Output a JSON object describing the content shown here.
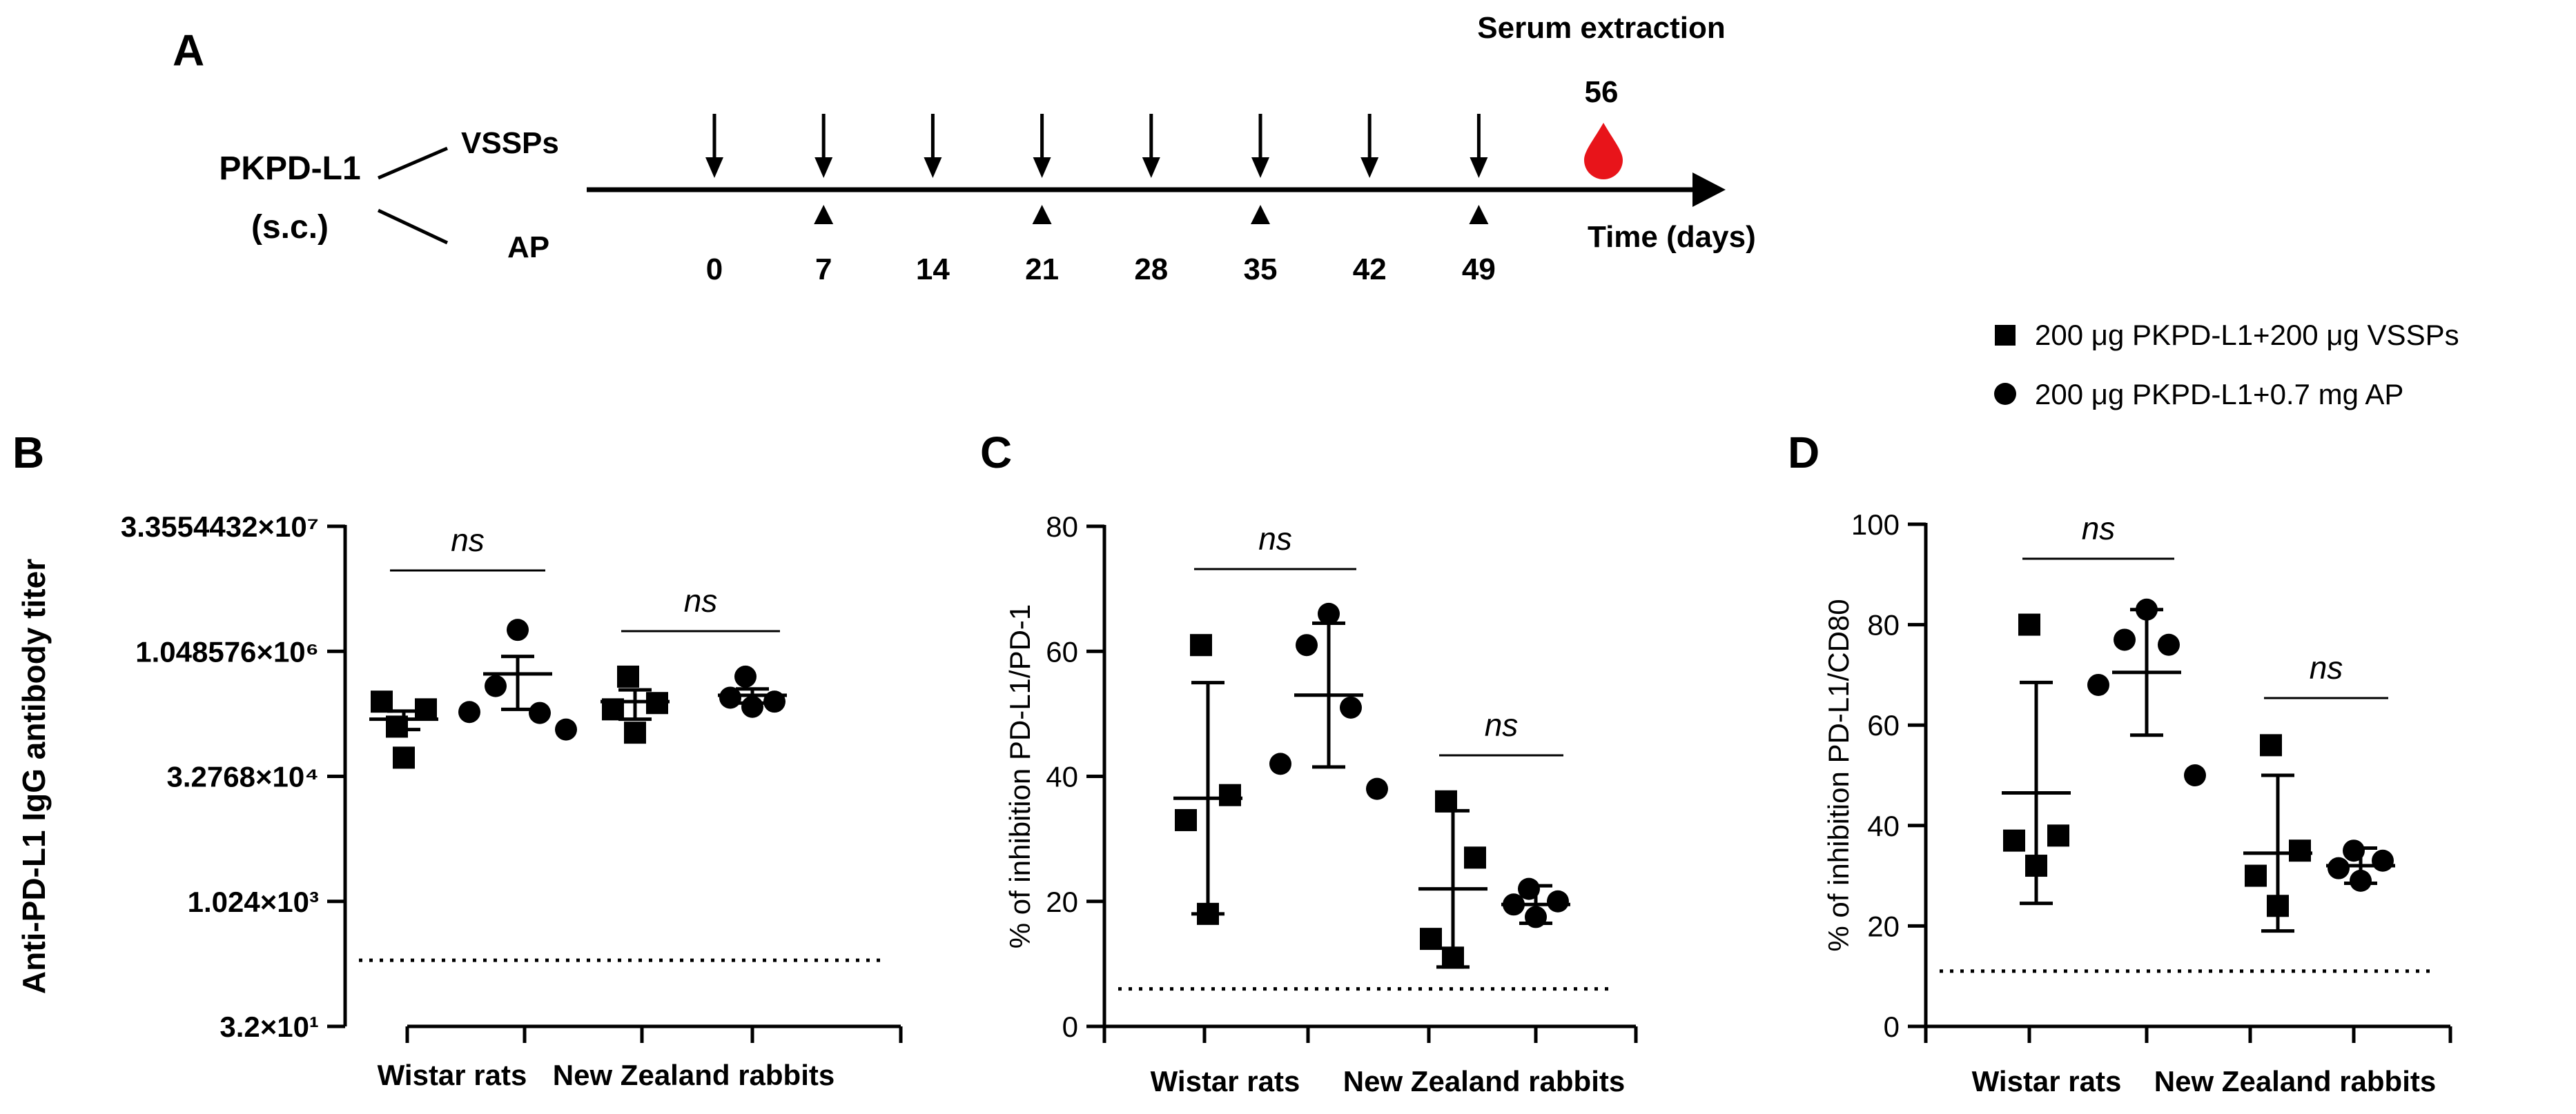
{
  "panel_a": {
    "letter": "A",
    "drug": "PKPD-L1",
    "route": "(s.c.)",
    "branch_top": "VSSPs",
    "branch_bottom": "AP",
    "serum_label": "Serum extraction",
    "serum_day": "56",
    "axis_label": "Time (days)",
    "days": [
      "0",
      "7",
      "14",
      "21",
      "28",
      "35",
      "42",
      "49"
    ],
    "vssp_days": [
      0,
      7,
      14,
      21,
      28,
      35,
      42,
      49
    ],
    "ap_days": [
      7,
      21,
      35,
      49
    ],
    "drop_color": "#e8141a"
  },
  "legend": {
    "square_label": "200 μg PKPD-L1+200 μg VSSPs",
    "circle_label": "200 μg PKPD-L1+0.7 mg AP"
  },
  "chart_data": [
    {
      "panel": "B",
      "type": "scatter",
      "ylabel": "Anti-PD-L1 IgG antibody titer",
      "yscale": "log2",
      "ylim": [
        32,
        33554432
      ],
      "yticks": [
        32,
        1024,
        32768,
        1048576,
        33554432
      ],
      "yticklabels": [
        "3.2×10¹",
        "1.024×10³",
        "3.2768×10⁴",
        "1.048576×10⁶",
        "3.3554432×10⁷"
      ],
      "categories": [
        "Wistar rats",
        "New Zealand rabbits"
      ],
      "detection_limit": 200,
      "significance": [
        "ns",
        "ns"
      ],
      "series": [
        {
          "marker": "square",
          "group": "Wistar rats",
          "values": [
            130000,
            210000,
            260000,
            55000
          ],
          "mean": 160000,
          "error": 40000
        },
        {
          "marker": "circle",
          "group": "Wistar rats",
          "values": [
            1900000,
            400000,
            190000,
            195000,
            120000
          ],
          "mean": 560000,
          "error": 350000
        },
        {
          "marker": "square",
          "group": "New Zealand rabbits",
          "values": [
            520000,
            250000,
            210000,
            110000
          ],
          "mean": 260000,
          "error": 100000
        },
        {
          "marker": "circle",
          "group": "New Zealand rabbits",
          "values": [
            520000,
            260000,
            290000,
            225000
          ],
          "mean": 310000,
          "error": 60000
        }
      ]
    },
    {
      "panel": "C",
      "type": "scatter",
      "ylabel": "% of inhibition PD-L1/PD-1",
      "ylim": [
        0,
        80
      ],
      "yticks": [
        0,
        20,
        40,
        60,
        80
      ],
      "categories": [
        "Wistar rats",
        "New Zealand rabbits"
      ],
      "detection_limit": 6,
      "significance": [
        "ns",
        "ns"
      ],
      "series": [
        {
          "marker": "square",
          "group": "Wistar rats",
          "values": [
            61,
            37,
            33,
            18
          ],
          "mean": 36.5,
          "error": 18.5
        },
        {
          "marker": "circle",
          "group": "Wistar rats",
          "values": [
            66,
            61,
            51,
            42,
            38
          ],
          "mean": 53,
          "error": 11.5
        },
        {
          "marker": "square",
          "group": "New Zealand rabbits",
          "values": [
            36,
            27,
            14,
            11
          ],
          "mean": 22,
          "error": 12.5
        },
        {
          "marker": "circle",
          "group": "New Zealand rabbits",
          "values": [
            22,
            20,
            19.5,
            17.5
          ],
          "mean": 19.5,
          "error": 3
        }
      ]
    },
    {
      "panel": "D",
      "type": "scatter",
      "ylabel": "% of inhibition PD-L1/CD80",
      "ylim": [
        0,
        100
      ],
      "yticks": [
        0,
        20,
        40,
        60,
        80,
        100
      ],
      "categories": [
        "Wistar rats",
        "New Zealand rabbits"
      ],
      "detection_limit": 11,
      "significance": [
        "ns",
        "ns"
      ],
      "series": [
        {
          "marker": "square",
          "group": "Wistar rats",
          "values": [
            80,
            38,
            37,
            32
          ],
          "mean": 46.5,
          "error": 22
        },
        {
          "marker": "circle",
          "group": "Wistar rats",
          "values": [
            83,
            77,
            76,
            68,
            50
          ],
          "mean": 70.5,
          "error": 12.5
        },
        {
          "marker": "square",
          "group": "New Zealand rabbits",
          "values": [
            56,
            35,
            30,
            24
          ],
          "mean": 34.5,
          "error": 15.5
        },
        {
          "marker": "circle",
          "group": "New Zealand rabbits",
          "values": [
            35,
            33,
            31.5,
            29
          ],
          "mean": 32,
          "error": 3.5
        }
      ]
    }
  ]
}
